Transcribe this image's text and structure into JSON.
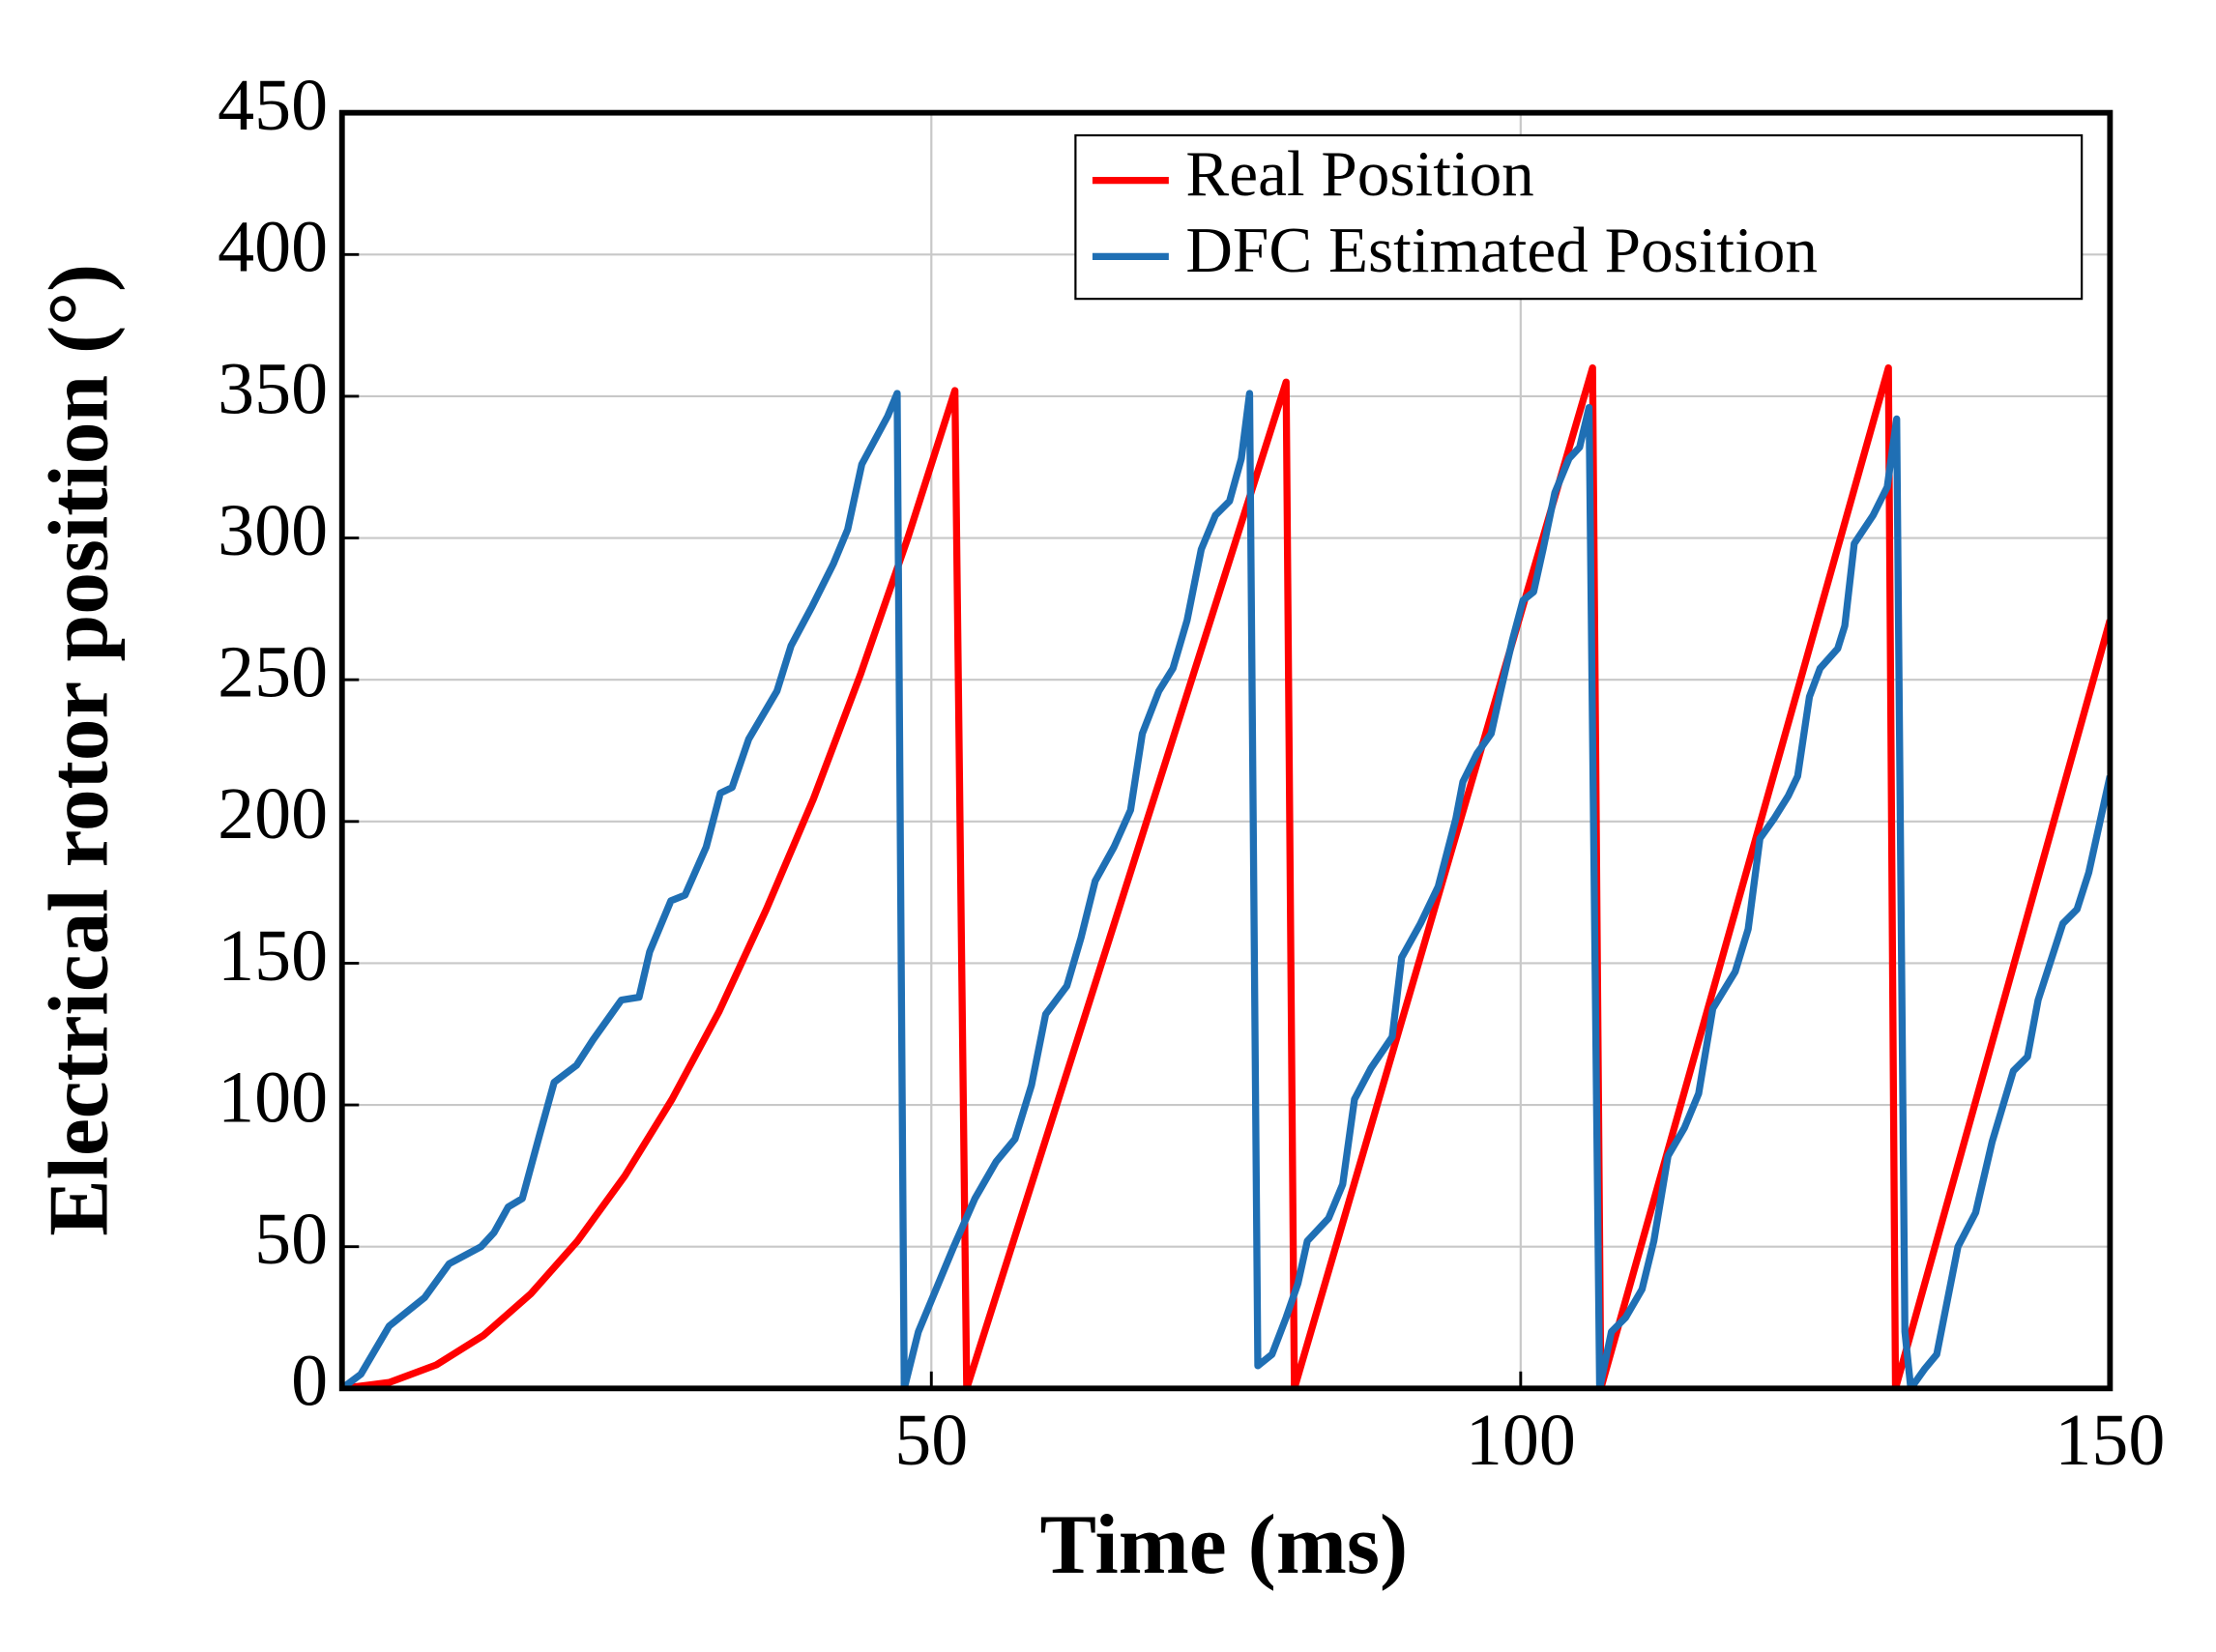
{
  "chart_data": {
    "type": "line",
    "xlabel": "Time (ms)",
    "ylabel": "Electrical rotor position (°)",
    "xlim": [
      0,
      150
    ],
    "xticks": [
      50,
      100,
      150
    ],
    "ylim": [
      0,
      450
    ],
    "yticks": [
      0,
      50,
      100,
      150,
      200,
      250,
      300,
      350,
      400,
      450
    ],
    "grid": true,
    "legend": "upper right",
    "series": [
      {
        "name": "Real Position",
        "color": "#ff0000",
        "x": [
          0,
          4,
          8,
          12,
          16,
          20,
          24,
          28,
          32,
          36,
          40,
          44,
          48,
          52,
          53,
          80.1,
          80.8,
          106.1,
          106.8,
          131.2,
          131.8,
          150
        ],
        "values": [
          0,
          2.1,
          8.3,
          18.7,
          33.3,
          52.1,
          75,
          102,
          133,
          169,
          208,
          252,
          300,
          352,
          0,
          355,
          0,
          360,
          0,
          360,
          0,
          271
        ]
      },
      {
        "name": "DFC Estimated Position",
        "color": "#1f6fb4",
        "x": [
          0,
          1.6,
          4.0,
          7.0,
          9.1,
          11.8,
          12.9,
          14.1,
          15.3,
          16.8,
          18.0,
          19.9,
          21.3,
          23.7,
          25.2,
          26.1,
          27.9,
          29.1,
          30.9,
          32.1,
          33.1,
          34.5,
          36.9,
          38.1,
          39.9,
          41.7,
          42.9,
          44.1,
          46.3,
          47.1,
          47.7,
          48.9,
          50.1,
          51.9,
          53.7,
          55.5,
          57.1,
          58.5,
          59.7,
          61.5,
          62.7,
          63.9,
          65.5,
          66.9,
          67.9,
          69.3,
          70.5,
          71.7,
          72.9,
          74.1,
          75.3,
          76.3,
          77.0,
          77.7,
          78.9,
          80.1,
          81.1,
          81.9,
          83.7,
          84.9,
          85.9,
          87.3,
          89.1,
          89.9,
          91.5,
          93.0,
          94.5,
          95.1,
          96.3,
          97.5,
          98.3,
          99.3,
          100.2,
          101.1,
          101.9,
          102.9,
          104.1,
          105.0,
          105.8,
          106.7,
          107.7,
          108.9,
          110.3,
          111.3,
          112.5,
          113.9,
          115.1,
          116.3,
          118.2,
          119.3,
          120.3,
          121.5,
          122.7,
          123.5,
          124.5,
          125.4,
          126.9,
          127.5,
          128.3,
          129.9,
          131.1,
          131.9,
          132.6,
          133.1,
          134.3,
          135.3,
          137.1,
          138.6,
          140.0,
          141.8,
          143.0,
          143.9,
          146.0,
          147.2,
          148.2,
          149.1,
          150.0
        ],
        "values": [
          0,
          5,
          22,
          32,
          44,
          50,
          55,
          64,
          67,
          90,
          108,
          114,
          123,
          137,
          138,
          154,
          172,
          174,
          191,
          210,
          212,
          229,
          246,
          262,
          276,
          291,
          303,
          326,
          343,
          351,
          0,
          20,
          32,
          50,
          67,
          80,
          88,
          107,
          132,
          142,
          159,
          179,
          191,
          204,
          231,
          246,
          254,
          271,
          296,
          308,
          313,
          328,
          351,
          8,
          12,
          25,
          37,
          52,
          60,
          72,
          102,
          113,
          124,
          152,
          164,
          177,
          201,
          214,
          224,
          231,
          246,
          264,
          278,
          281,
          296,
          316,
          328,
          332,
          346,
          0,
          20,
          25,
          35,
          52,
          82,
          92,
          104,
          134,
          147,
          162,
          194,
          201,
          209,
          216,
          244,
          254,
          261,
          269,
          298,
          308,
          318,
          342,
          20,
          0,
          7,
          12,
          50,
          62,
          87,
          112,
          117,
          137,
          164,
          169,
          182,
          199,
          216
        ]
      }
    ]
  }
}
